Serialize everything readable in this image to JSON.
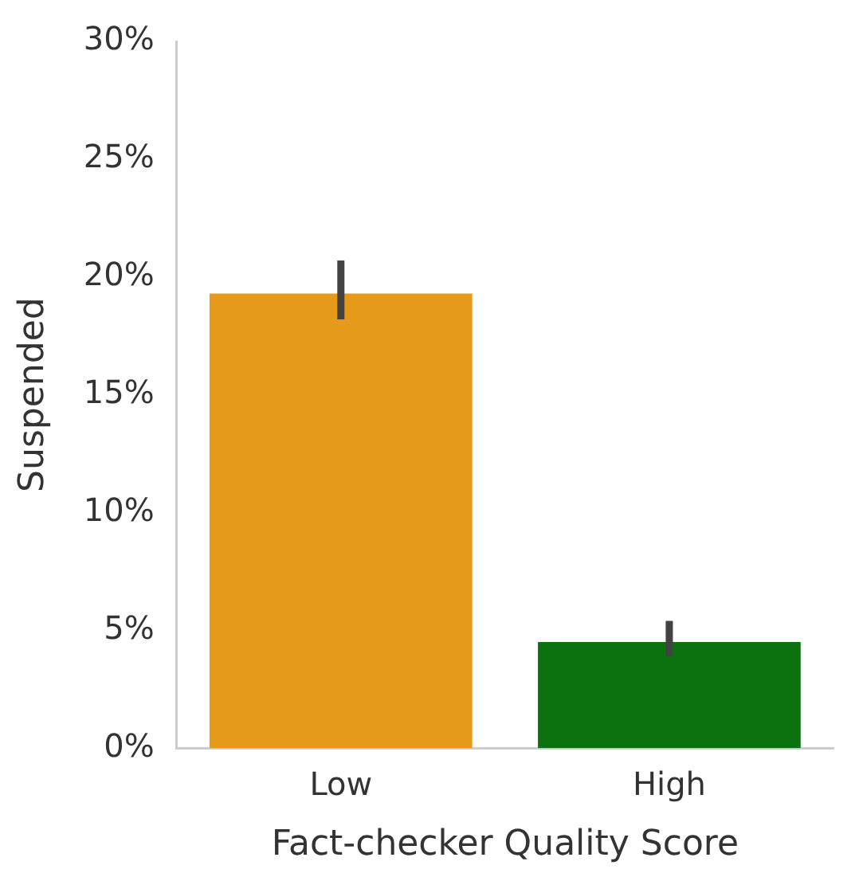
{
  "chart_data": {
    "type": "bar",
    "xlabel": "Fact-checker Quality Score",
    "ylabel": "Suspended",
    "categories": [
      "Low",
      "High"
    ],
    "values": [
      19.3,
      4.5
    ],
    "colors": [
      "#e59a1c",
      "#0c720f"
    ],
    "errors": [
      [
        18.2,
        20.7
      ],
      [
        3.9,
        5.4
      ]
    ],
    "ylim": [
      0,
      30
    ],
    "yticks": [
      {
        "value": 0,
        "label": "0%"
      },
      {
        "value": 5,
        "label": "5%"
      },
      {
        "value": 10,
        "label": "10%"
      },
      {
        "value": 15,
        "label": "15%"
      },
      {
        "value": 20,
        "label": "20%"
      },
      {
        "value": 25,
        "label": "25%"
      },
      {
        "value": 30,
        "label": "30%"
      }
    ],
    "grid": false,
    "legend": false
  }
}
